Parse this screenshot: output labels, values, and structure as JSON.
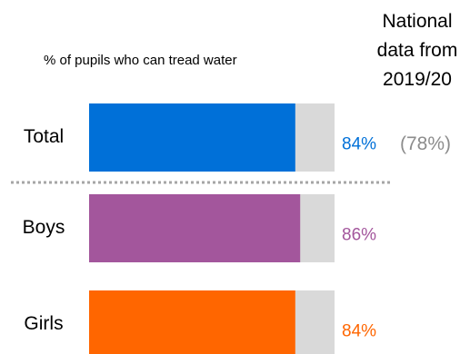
{
  "chart_data": {
    "type": "bar",
    "orientation": "horizontal",
    "subtitle": "% of pupils who can tread water",
    "national_header": [
      "National",
      "data from",
      "2019/20"
    ],
    "categories": [
      "Total",
      "Boys",
      "Girls"
    ],
    "values": [
      84,
      86,
      84
    ],
    "value_labels": [
      "84%",
      "86%",
      "84%"
    ],
    "colors": [
      "#0070D8",
      "#A3569C",
      "#FF6600"
    ],
    "background_bar_color": "#D9D9D9",
    "national_values": [
      78,
      null,
      null
    ],
    "national_labels": [
      "(78%)",
      "",
      ""
    ],
    "national_label_color": "#8C8C8C",
    "xlim": [
      0,
      100
    ],
    "grid": false,
    "legend": "none",
    "separator_after_index": 0
  }
}
